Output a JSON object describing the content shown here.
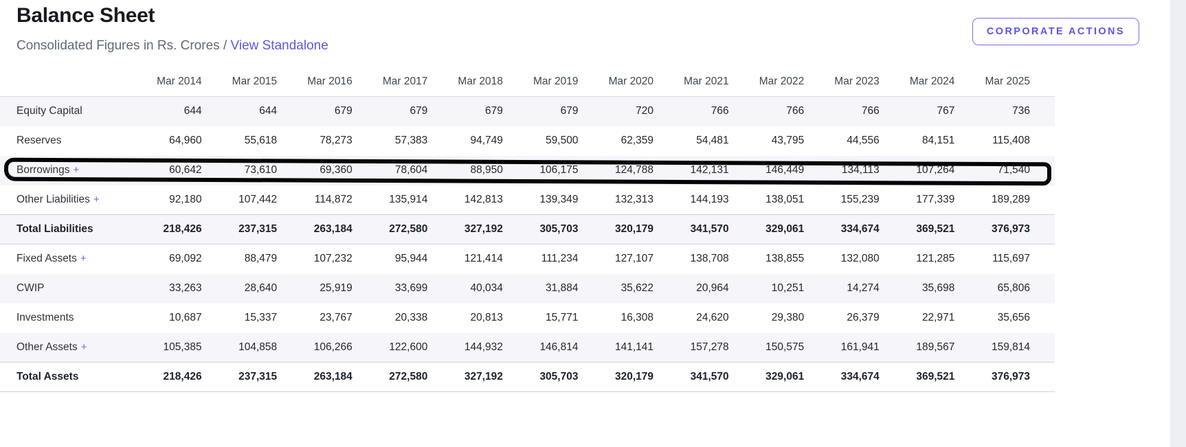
{
  "header": {
    "title": "Balance Sheet",
    "subtitle_prefix": "Consolidated Figures in Rs. Crores / ",
    "view_standalone_label": "View Standalone",
    "corporate_actions_label": "CORPORATE ACTIONS"
  },
  "colors": {
    "accent": "#5a57e6",
    "stripe_row": "#f5f5fa",
    "annotation": "#050505",
    "page_edge_strip": "#edeff4"
  },
  "table": {
    "expand_symbol": "+",
    "columns": [
      "Mar 2014",
      "Mar 2015",
      "Mar 2016",
      "Mar 2017",
      "Mar 2018",
      "Mar 2019",
      "Mar 2020",
      "Mar 2021",
      "Mar 2022",
      "Mar 2023",
      "Mar 2024",
      "Mar 2025"
    ],
    "rows": [
      {
        "label": "Equity Capital",
        "expandable": false,
        "total": false,
        "annotated": false,
        "values": [
          "644",
          "644",
          "679",
          "679",
          "679",
          "679",
          "720",
          "766",
          "766",
          "766",
          "767",
          "736"
        ]
      },
      {
        "label": "Reserves",
        "expandable": false,
        "total": false,
        "annotated": false,
        "values": [
          "64,960",
          "55,618",
          "78,273",
          "57,383",
          "94,749",
          "59,500",
          "62,359",
          "54,481",
          "43,795",
          "44,556",
          "84,151",
          "115,408"
        ]
      },
      {
        "label": "Borrowings",
        "expandable": true,
        "total": false,
        "annotated": true,
        "values": [
          "60,642",
          "73,610",
          "69,360",
          "78,604",
          "88,950",
          "106,175",
          "124,788",
          "142,131",
          "146,449",
          "134,113",
          "107,264",
          "71,540"
        ]
      },
      {
        "label": "Other Liabilities",
        "expandable": true,
        "total": false,
        "annotated": false,
        "values": [
          "92,180",
          "107,442",
          "114,872",
          "135,914",
          "142,813",
          "139,349",
          "132,313",
          "144,193",
          "138,051",
          "155,239",
          "177,339",
          "189,289"
        ]
      },
      {
        "label": "Total Liabilities",
        "expandable": false,
        "total": true,
        "annotated": false,
        "values": [
          "218,426",
          "237,315",
          "263,184",
          "272,580",
          "327,192",
          "305,703",
          "320,179",
          "341,570",
          "329,061",
          "334,674",
          "369,521",
          "376,973"
        ]
      },
      {
        "label": "Fixed Assets",
        "expandable": true,
        "total": false,
        "annotated": false,
        "values": [
          "69,092",
          "88,479",
          "107,232",
          "95,944",
          "121,414",
          "111,234",
          "127,107",
          "138,708",
          "138,855",
          "132,080",
          "121,285",
          "115,697"
        ]
      },
      {
        "label": "CWIP",
        "expandable": false,
        "total": false,
        "annotated": false,
        "values": [
          "33,263",
          "28,640",
          "25,919",
          "33,699",
          "40,034",
          "31,884",
          "35,622",
          "20,964",
          "10,251",
          "14,274",
          "35,698",
          "65,806"
        ]
      },
      {
        "label": "Investments",
        "expandable": false,
        "total": false,
        "annotated": false,
        "values": [
          "10,687",
          "15,337",
          "23,767",
          "20,338",
          "20,813",
          "15,771",
          "16,308",
          "24,620",
          "29,380",
          "26,379",
          "22,971",
          "35,656"
        ]
      },
      {
        "label": "Other Assets",
        "expandable": true,
        "total": false,
        "annotated": false,
        "values": [
          "105,385",
          "104,858",
          "106,266",
          "122,600",
          "144,932",
          "146,814",
          "141,141",
          "157,278",
          "150,575",
          "161,941",
          "189,567",
          "159,814"
        ]
      },
      {
        "label": "Total Assets",
        "expandable": false,
        "total": true,
        "annotated": false,
        "values": [
          "218,426",
          "237,315",
          "263,184",
          "272,580",
          "327,192",
          "305,703",
          "320,179",
          "341,570",
          "329,061",
          "334,674",
          "369,521",
          "376,973"
        ]
      }
    ]
  },
  "annotation": {
    "type": "hand-drawn-rectangle",
    "target_row": "Borrowings"
  }
}
